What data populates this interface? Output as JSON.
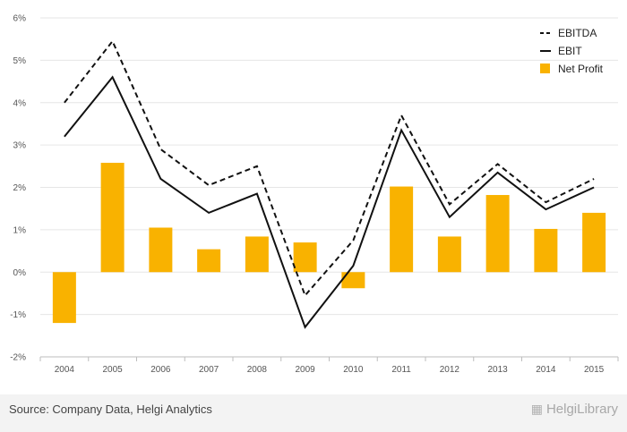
{
  "chart_data": {
    "type": "bar+line",
    "categories": [
      "2004",
      "2005",
      "2006",
      "2007",
      "2008",
      "2009",
      "2010",
      "2011",
      "2012",
      "2013",
      "2014",
      "2015"
    ],
    "series": [
      {
        "name": "EBITDA",
        "type": "line",
        "style": "dashed",
        "color": "#111111",
        "values": [
          4.0,
          5.45,
          2.9,
          2.05,
          2.5,
          -0.55,
          0.75,
          3.7,
          1.6,
          2.55,
          1.65,
          2.2
        ]
      },
      {
        "name": "EBIT",
        "type": "line",
        "style": "solid",
        "color": "#111111",
        "values": [
          3.2,
          4.6,
          2.2,
          1.4,
          1.85,
          -1.3,
          0.15,
          3.35,
          1.3,
          2.35,
          1.48,
          2.0
        ]
      },
      {
        "name": "Net Profit",
        "type": "bar",
        "color": "#f9b200",
        "values": [
          -1.2,
          2.58,
          1.05,
          0.54,
          0.84,
          0.7,
          -0.38,
          2.02,
          0.84,
          1.82,
          1.02,
          1.4
        ]
      }
    ],
    "yticks": [
      "-2%",
      "-1%",
      "0%",
      "1%",
      "2%",
      "3%",
      "4%",
      "5%",
      "6%"
    ],
    "ylim": [
      -2,
      6
    ],
    "grid": true,
    "legend_position": "top-right"
  },
  "footer": {
    "source": "Source: Company Data, Helgi Analytics",
    "brand": "HelgiLibrary"
  }
}
